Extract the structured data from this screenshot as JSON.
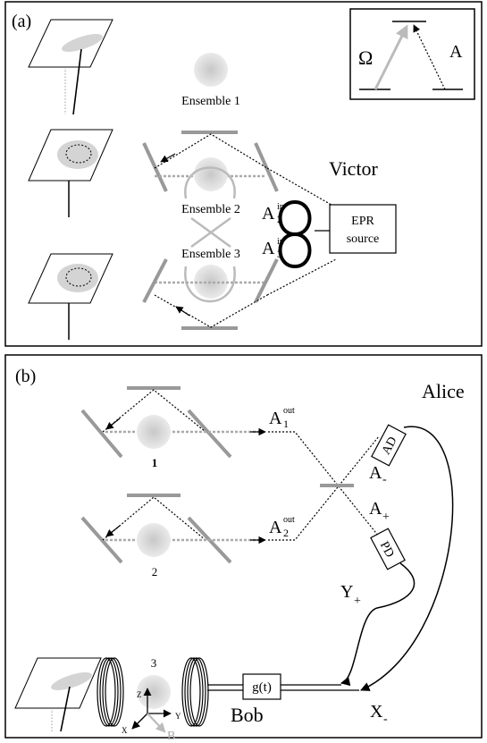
{
  "panel_a": {
    "label": "(a)",
    "ensemble1": "Ensemble 1",
    "ensemble2": "Ensemble 2",
    "ensemble3": "Ensemble 3",
    "victor": "Victor",
    "a2_base": "A",
    "a2_sup": "in",
    "a2_sub": "2",
    "a3_base": "A",
    "a3_sup": "in",
    "a3_sub": "3",
    "epr_line1": "EPR",
    "epr_line2": "source",
    "level_omega": "Ω",
    "level_a": "A"
  },
  "panel_b": {
    "label": "(b)",
    "alice": "Alice",
    "bob": "Bob",
    "a1_base": "A",
    "a1_sup": "out",
    "a1_sub": "1",
    "a2_base": "A",
    "a2_sup": "out",
    "a2_sub": "2",
    "a_minus_base": "A",
    "a_minus_sub": "-",
    "a_plus_base": "A",
    "a_plus_sub": "+",
    "y_plus_base": "Y",
    "y_plus_sub": "+",
    "x_minus_base": "X",
    "x_minus_sub": "-",
    "ad": "AD",
    "pd": "PD",
    "gt": "g(t)",
    "num1": "1",
    "num2": "2",
    "num3": "3",
    "axis_z": "Z",
    "axis_y": "Y",
    "axis_x": "X",
    "axis_b": "B"
  }
}
